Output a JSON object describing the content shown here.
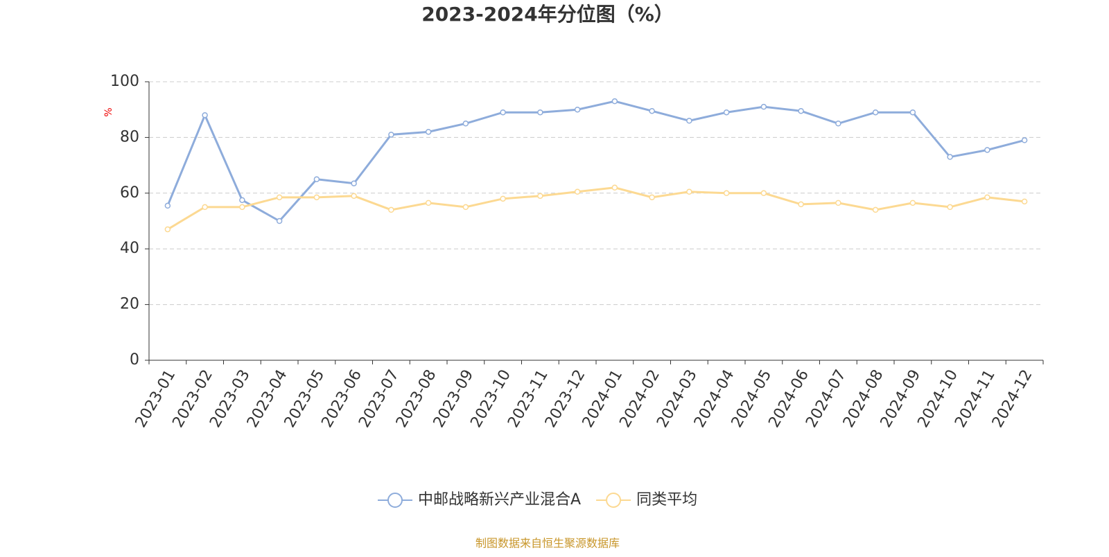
{
  "chart_data": {
    "type": "line",
    "title": "2023-2024年分位图（%）",
    "y_label": "%",
    "categories": [
      "2023-01",
      "2023-02",
      "2023-03",
      "2023-04",
      "2023-05",
      "2023-06",
      "2023-07",
      "2023-08",
      "2023-09",
      "2023-10",
      "2023-11",
      "2023-12",
      "2024-01",
      "2024-02",
      "2024-03",
      "2024-04",
      "2024-05",
      "2024-06",
      "2024-07",
      "2024-08",
      "2024-09",
      "2024-10",
      "2024-11",
      "2024-12"
    ],
    "series": [
      {
        "name": "中邮战略新兴产业混合A",
        "color": "#8eacdb",
        "values": [
          55.5,
          88,
          57.5,
          50,
          65,
          63.5,
          81,
          82,
          85,
          89,
          89,
          90,
          93,
          89.5,
          86,
          89,
          91,
          89.5,
          85,
          89,
          89,
          73,
          75.5,
          79
        ]
      },
      {
        "name": "同类平均",
        "color": "#fcd992",
        "values": [
          47,
          55,
          55,
          58.5,
          58.5,
          59,
          54,
          56.5,
          55,
          58,
          59,
          60.5,
          62,
          58.5,
          60.5,
          60,
          60,
          56,
          56.5,
          54,
          56.5,
          55,
          58.5,
          57
        ]
      }
    ],
    "ylim": [
      0,
      100
    ],
    "yticks": [
      0,
      20,
      40,
      60,
      80,
      100
    ],
    "grid": true,
    "legend": "bottom",
    "source": "制图数据来自恒生聚源数据库"
  }
}
